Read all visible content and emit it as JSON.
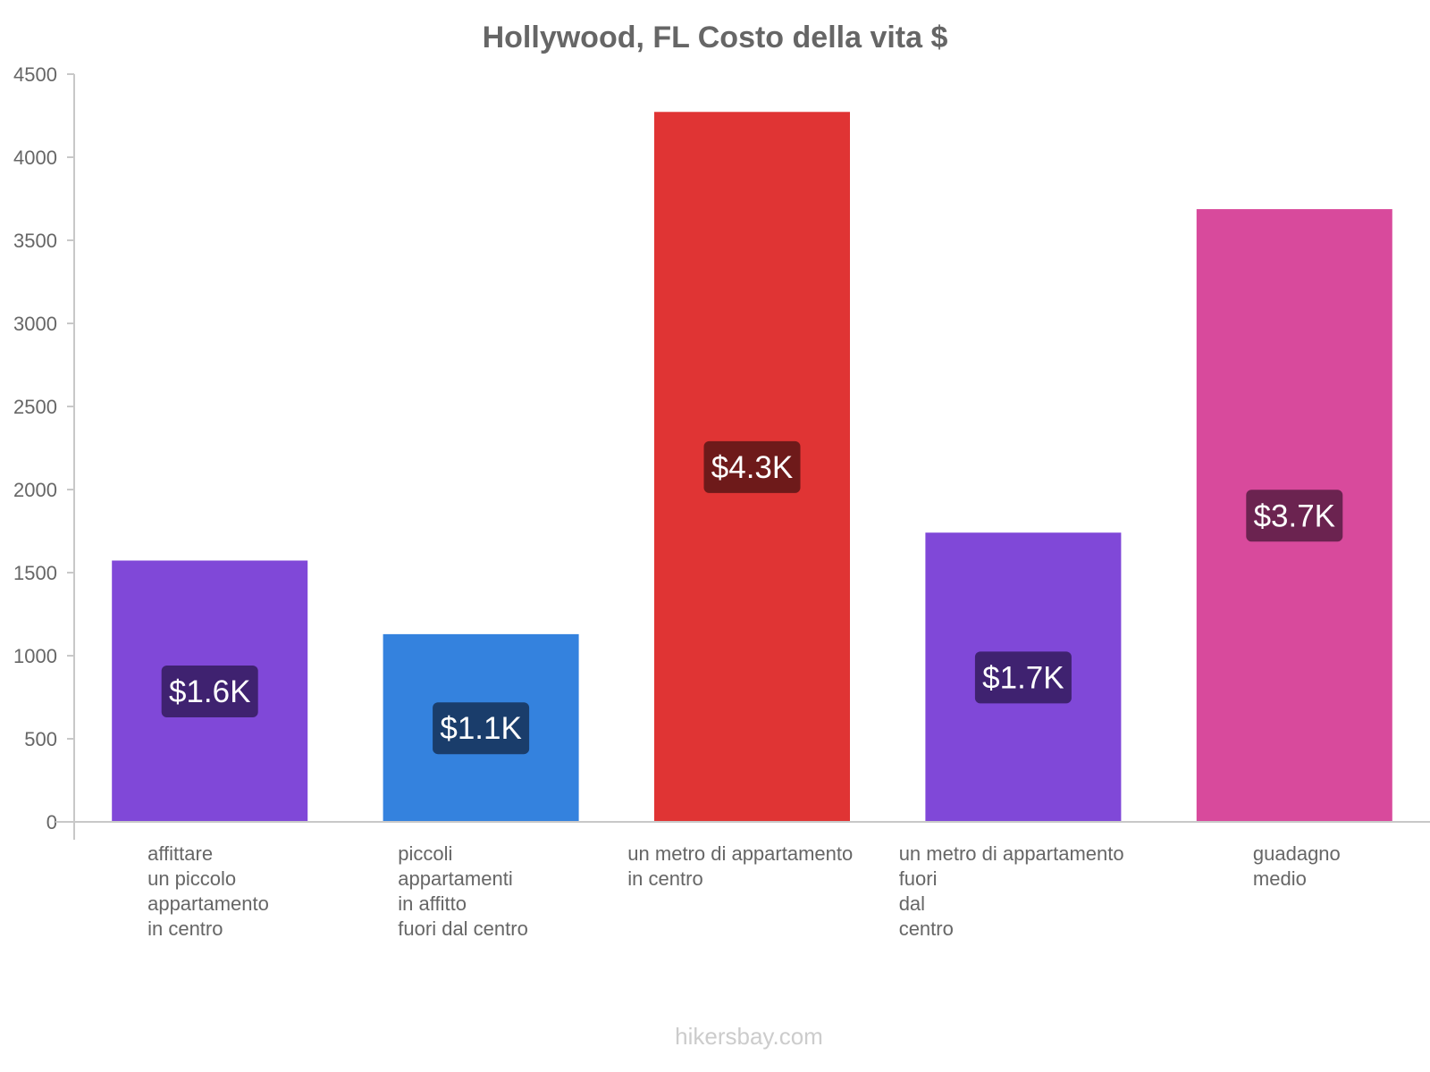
{
  "chart_data": {
    "type": "bar",
    "title": "Hollywood, FL Costo della vita $",
    "xlabel": "",
    "ylabel": "",
    "ylim": [
      0,
      4500
    ],
    "yticks": [
      0,
      500,
      1000,
      1500,
      2000,
      2500,
      3000,
      3500,
      4000,
      4500
    ],
    "grid": false,
    "categories": [
      [
        "affittare",
        "un piccolo",
        "appartamento",
        "in centro"
      ],
      [
        "piccoli",
        "appartamenti",
        "in affitto",
        "fuori dal centro"
      ],
      [
        "un metro di appartamento",
        "in centro"
      ],
      [
        "un metro di appartamento",
        "fuori",
        "dal",
        "centro"
      ],
      [
        "guadagno",
        "medio"
      ]
    ],
    "values": [
      1570,
      1127,
      4270,
      1738,
      3685
    ],
    "data_labels": [
      "$1.6K",
      "$1.1K",
      "$4.3K",
      "$1.7K",
      "$3.7K"
    ],
    "bar_colors": [
      "#8048d8",
      "#3482de",
      "#e03434",
      "#8048d8",
      "#d84a9c"
    ],
    "label_bg_colors": [
      "#3f2270",
      "#1a3d6b",
      "#6e1a1a",
      "#3f2270",
      "#6b2350"
    ]
  },
  "watermark": "hikersbay.com"
}
